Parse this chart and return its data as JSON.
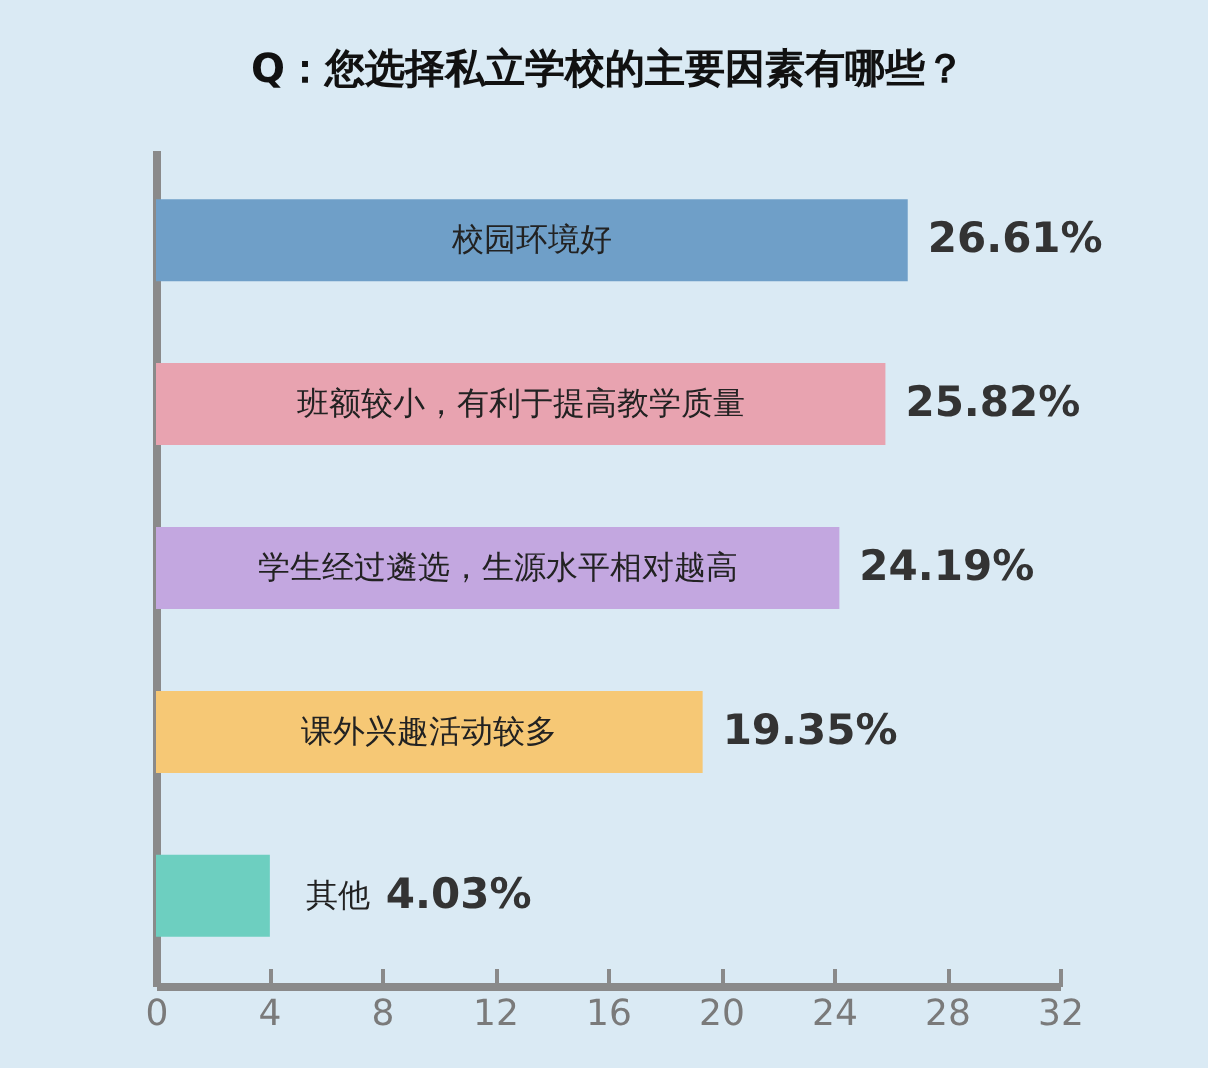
{
  "chart_data": {
    "type": "bar",
    "orientation": "horizontal",
    "title": "Q：您选择私立学校的主要因素有哪些？",
    "categories": [
      "校园环境好",
      "班额较小，有利于提高教学质量",
      "学生经过遴选，生源水平相对越高",
      "课外兴趣活动较多",
      "其他"
    ],
    "values": [
      26.61,
      25.82,
      24.19,
      19.35,
      4.03
    ],
    "colors": [
      "#6f9fc8",
      "#e8a3b0",
      "#c3a7e0",
      "#f6c875",
      "#6dcfc0"
    ],
    "value_labels": [
      "26.61%",
      "25.82%",
      "24.19%",
      "19.35%",
      "4.03%"
    ],
    "xlim": [
      0,
      32
    ],
    "xticks": [
      0,
      4,
      8,
      12,
      16,
      20,
      24,
      28,
      32
    ],
    "tick_labels": "x",
    "grid": false
  }
}
